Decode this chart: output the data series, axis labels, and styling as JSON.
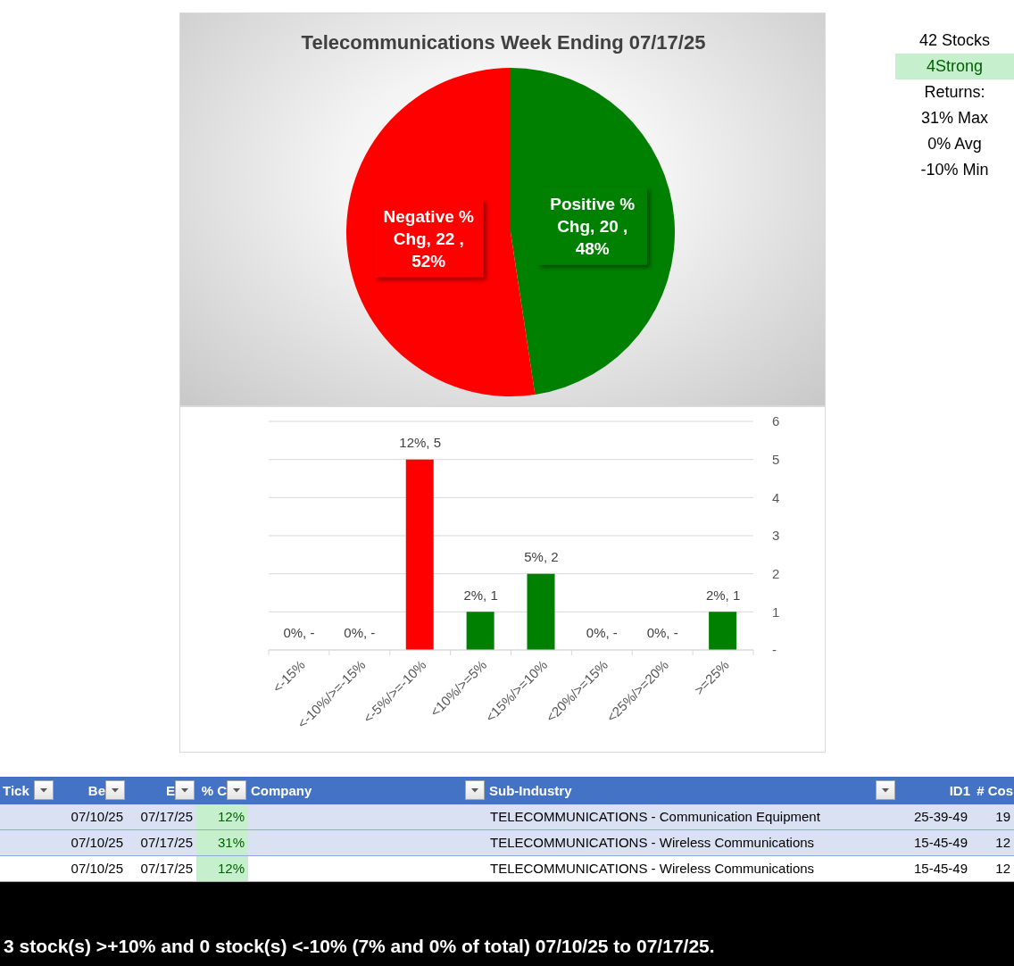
{
  "chart_data": [
    {
      "type": "pie",
      "title": "Telecommunications Week Ending 07/17/25",
      "categories": [
        "Positive % Chg",
        "Negative % Chg"
      ],
      "values": [
        20,
        22
      ],
      "colors": [
        "#008000",
        "#ff0000"
      ],
      "value_labels": [
        "20 , 48%",
        "22 , 52%"
      ]
    },
    {
      "type": "other",
      "annotations": [
        "42 Stocks",
        "4Strong",
        "Returns:",
        "31% Max",
        "0% Avg",
        "-10% Min"
      ]
    },
    {
      "type": "bar",
      "categories": [
        "<-15%",
        "<-10%/>=-15%",
        "<-5%/>=-10%",
        "<10%/>=5%",
        "<15%/>=10%",
        "<20%/>=15%",
        "<25%/>=20%",
        ">=25%"
      ],
      "values": [
        0,
        0,
        5,
        1,
        2,
        0,
        0,
        1
      ],
      "colors": [
        "#ff0000",
        "#ff0000",
        "#ff0000",
        "#008000",
        "#008000",
        "#008000",
        "#008000",
        "#008000"
      ],
      "value_labels": [
        "0%, -",
        "0%, -",
        "12%, 5",
        "2%, 1",
        "5%, 2",
        "0%, -",
        "0%, -",
        "2%, 1"
      ],
      "ylim": [
        0,
        6
      ],
      "yticks": [
        {
          "value": 0,
          "label": "-"
        },
        1,
        2,
        3,
        4,
        5,
        6
      ],
      "grid": "y"
    },
    {
      "type": "other",
      "categories": [
        "Tick",
        "Be",
        "E",
        "% C",
        "Company",
        "Sub-Industry",
        "ID1",
        "# Cos"
      ],
      "cell_labels": [
        [
          null,
          "07/10/25",
          "07/17/25",
          "12%",
          null,
          "TELECOMMUNICATIONS - Communication Equipment",
          "25-39-49",
          "19"
        ],
        [
          null,
          "07/10/25",
          "07/17/25",
          "31%",
          null,
          "TELECOMMUNICATIONS - Wireless Communications",
          "15-45-49",
          "12"
        ],
        [
          null,
          "07/10/25",
          "07/17/25",
          "12%",
          null,
          "TELECOMMUNICATIONS - Wireless Communications",
          "15-45-49",
          "12"
        ]
      ],
      "annotations": [
        "3 stock(s) >+10% and 0 stock(s) <-10% (7% and 0% of total) 07/10/25 to 07/17/25."
      ]
    }
  ]
}
